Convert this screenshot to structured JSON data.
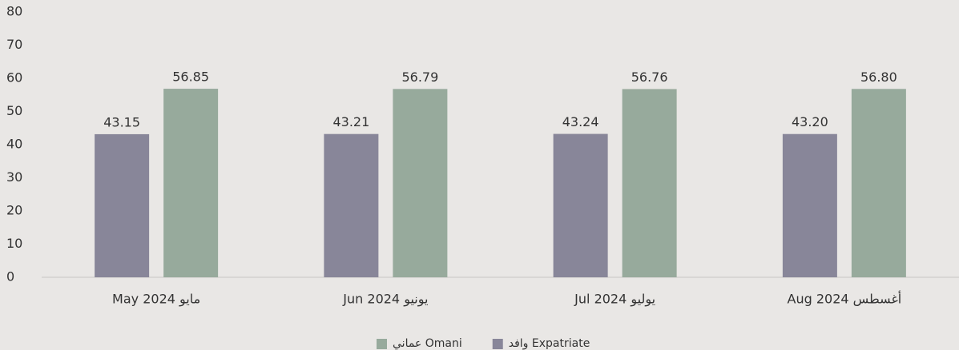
{
  "chart_data": {
    "type": "bar",
    "categories": [
      "May 2024 مايو",
      "Jun 2024 يونيو",
      "Jul 2024 يوليو",
      "Aug 2024 أغسطس"
    ],
    "series": [
      {
        "name": "وافد Expatriate",
        "color": "#888699",
        "values": [
          43.15,
          43.21,
          43.24,
          43.2
        ],
        "value_labels": [
          "43.15",
          "43.21",
          "43.24",
          "43.20"
        ]
      },
      {
        "name": "عماني Omani",
        "color": "#97aa9c",
        "values": [
          56.85,
          56.79,
          56.76,
          56.8
        ],
        "value_labels": [
          "56.85",
          "56.79",
          "56.76",
          "56.80"
        ]
      }
    ],
    "ylim": [
      0,
      80
    ],
    "yticks": [
      0,
      10,
      20,
      30,
      40,
      50,
      60,
      70,
      80
    ],
    "grid": false,
    "legend": "bottom"
  }
}
